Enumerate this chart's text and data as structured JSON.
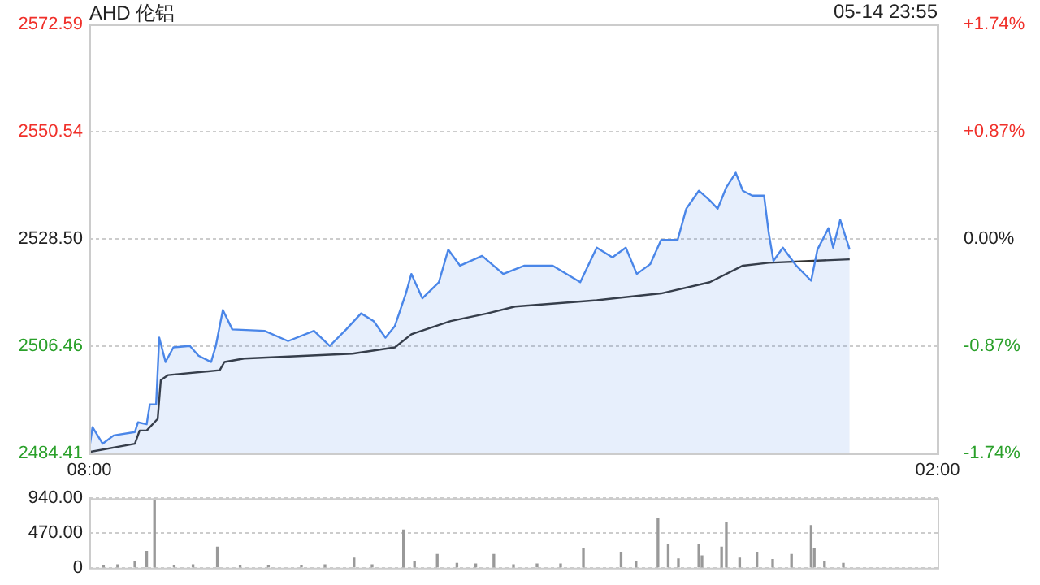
{
  "chart_data": [
    {
      "type": "line",
      "title": "AHD 伦铝",
      "subtitle": "05-14 23:55",
      "xlim": [
        "--05-14T08:00",
        "--05-15T02:00"
      ],
      "xticks": [
        {
          "value": "--05-14T08:00",
          "label": "08:00"
        },
        {
          "value": "--05-15T02:00",
          "label": "02:00"
        }
      ],
      "ylim": [
        2484.41,
        2572.59
      ],
      "yticks": [
        {
          "value": 2484.41,
          "label": "2484.41"
        },
        2506.46,
        {
          "value": 2528.5,
          "label": "2528.50"
        },
        2550.54,
        2572.59
      ],
      "y2lim": [
        -1.74,
        1.74
      ],
      "y2ticks": [
        {
          "value": -1.74,
          "label": "-1.74%"
        },
        {
          "value": -0.87,
          "label": "-0.87%"
        },
        {
          "value": 0,
          "label": "0.00%"
        },
        {
          "value": 0.87,
          "label": "+0.87%"
        },
        {
          "value": 1.74,
          "label": "+1.74%"
        }
      ],
      "grid": "y",
      "marker": "none",
      "series": [
        {
          "type": "area",
          "color": "#4a86e8",
          "x": [
            "--05-14T08:00",
            "--05-14T08:04",
            "--05-14T08:17",
            "--05-14T08:31",
            "--05-14T08:58",
            "--05-14T09:02",
            "--05-14T09:13",
            "--05-14T09:17",
            "--05-14T09:25",
            "--05-14T09:29",
            "--05-14T09:37",
            "--05-14T09:47",
            "--05-14T10:08",
            "--05-14T10:19",
            "--05-14T10:35",
            "--05-14T10:41",
            "--05-14T10:50",
            "--05-14T11:02",
            "--05-14T11:43",
            "--05-14T12:13",
            "--05-14T12:46",
            "--05-14T13:06",
            "--05-14T13:27",
            "--05-14T13:46",
            "--05-14T14:02",
            "--05-14T14:17",
            "--05-14T14:29",
            "--05-14T14:43",
            "--05-14T14:50",
            "--05-14T15:04",
            "--05-14T15:25",
            "--05-14T15:37",
            "--05-14T15:52",
            "--05-14T16:20",
            "--05-14T16:47",
            "--05-14T17:14",
            "--05-14T17:50",
            "--05-14T18:25",
            "--05-14T18:46",
            "--05-14T19:06",
            "--05-14T19:23",
            "--05-14T19:37",
            "--05-14T19:54",
            "--05-14T20:08",
            "--05-14T20:29",
            "--05-14T20:40",
            "--05-14T20:56",
            "--05-14T21:10",
            "--05-14T21:20",
            "--05-14T21:31",
            "--05-14T21:43",
            "--05-14T21:52",
            "--05-14T22:04",
            "--05-14T22:19",
            "--05-14T22:25",
            "--05-14T22:31",
            "--05-14T22:43",
            "--05-14T23:00",
            "--05-14T23:19",
            "--05-14T23:27",
            "--05-14T23:41",
            "--05-14T23:47",
            "--05-14T23:56",
            "--05-15T00:08"
          ],
          "values": [
            2485.4,
            2489.8,
            2486.4,
            2488.1,
            2488.8,
            2490.8,
            2490.4,
            2494.5,
            2494.5,
            2508.2,
            2503.2,
            2506.2,
            2506.5,
            2504.5,
            2503.2,
            2506.5,
            2513.9,
            2509.9,
            2509.6,
            2507.5,
            2509.6,
            2506.5,
            2509.9,
            2513.2,
            2511.6,
            2508.2,
            2510.6,
            2517.3,
            2521.3,
            2516.3,
            2519.6,
            2526.3,
            2523.0,
            2525.0,
            2521.3,
            2523.0,
            2523.0,
            2519.6,
            2526.7,
            2524.7,
            2526.7,
            2521.3,
            2523.3,
            2528.3,
            2528.3,
            2534.7,
            2538.4,
            2536.4,
            2534.7,
            2539.1,
            2542.1,
            2538.4,
            2537.4,
            2537.4,
            2529.7,
            2524.0,
            2526.7,
            2523.0,
            2519.9,
            2526.3,
            2530.7,
            2526.7,
            2532.4,
            2526.3
          ]
        },
        {
          "type": "line",
          "color": "#333333",
          "x": [
            "--05-14T08:00",
            "--05-14T08:58",
            "--05-14T09:04",
            "--05-14T09:13",
            "--05-14T09:27",
            "--05-14T09:31",
            "--05-14T09:40",
            "--05-14T10:46",
            "--05-14T10:52",
            "--05-14T11:17",
            "--05-14T13:35",
            "--05-14T14:29",
            "--05-14T14:50",
            "--05-14T15:40",
            "--05-14T16:27",
            "--05-14T17:02",
            "--05-14T18:46",
            "--05-14T20:08",
            "--05-14T21:10",
            "--05-14T21:52",
            "--05-14T22:25",
            "--05-15T00:08"
          ],
          "values": [
            2484.7,
            2486.4,
            2489.1,
            2489.1,
            2491.5,
            2499.5,
            2500.5,
            2501.5,
            2503.2,
            2503.9,
            2504.9,
            2506.2,
            2508.9,
            2511.6,
            2513.2,
            2514.6,
            2515.9,
            2517.3,
            2519.6,
            2523.0,
            2523.6,
            2524.3
          ]
        }
      ]
    },
    {
      "type": "bar",
      "xlim": [
        "--05-14T08:00",
        "--05-15T02:00"
      ],
      "ylim": [
        0,
        940
      ],
      "yticks": [
        0,
        {
          "value": 470,
          "label": "470.00"
        },
        {
          "value": 940,
          "label": "940.00"
        }
      ],
      "grid": "y",
      "tick_labels": "y",
      "color": "#999999",
      "x": [
        "--05-14T08:18",
        "--05-14T08:36",
        "--05-14T08:58",
        "--05-14T09:13",
        "--05-14T09:23",
        "--05-14T09:48",
        "--05-14T10:12",
        "--05-14T10:43",
        "--05-14T11:12",
        "--05-14T11:48",
        "--05-14T12:30",
        "--05-14T13:00",
        "--05-14T13:37",
        "--05-14T14:00",
        "--05-14T14:40",
        "--05-14T14:54",
        "--05-14T15:23",
        "--05-14T15:48",
        "--05-14T16:12",
        "--05-14T16:35",
        "--05-14T17:00",
        "--05-14T17:30",
        "--05-14T18:00",
        "--05-14T18:29",
        "--05-14T19:17",
        "--05-14T19:36",
        "--05-14T20:04",
        "--05-14T20:17",
        "--05-14T20:30",
        "--05-14T20:56",
        "--05-14T21:00",
        "--05-14T21:25",
        "--05-14T21:31",
        "--05-14T21:48",
        "--05-14T22:10",
        "--05-14T22:30",
        "--05-14T22:54",
        "--05-14T23:19",
        "--05-14T23:23",
        "--05-14T23:36",
        "--05-15T00:00"
      ],
      "values": [
        30,
        40,
        90,
        220,
        930,
        30,
        40,
        280,
        30,
        30,
        30,
        40,
        130,
        40,
        510,
        90,
        180,
        60,
        50,
        180,
        40,
        50,
        50,
        260,
        200,
        90,
        670,
        320,
        120,
        320,
        160,
        280,
        610,
        130,
        200,
        110,
        180,
        570,
        260,
        90,
        60
      ]
    }
  ]
}
